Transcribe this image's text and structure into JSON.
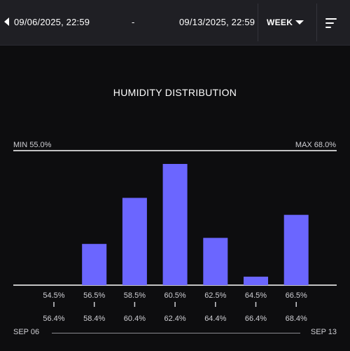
{
  "header": {
    "start_date": "09/06/2025, 22:59",
    "separator": "-",
    "end_date": "09/13/2025, 22:59",
    "period_label": "WEEK",
    "menu_icon": "sort-lines-icon",
    "back_icon": "caret-left-icon",
    "dropdown_icon": "caret-down-icon"
  },
  "colors": {
    "background": "#0d0d0f",
    "header_background": "#1f1f24",
    "bar": "#6b66ff",
    "axis": "#ffffff",
    "text": "#ffffff",
    "muted_text": "#cfcfd4"
  },
  "footer": {
    "start": "SEP 06",
    "end": "SEP 13"
  },
  "chart_data": {
    "type": "bar",
    "title": "HUMIDITY DISTRIBUTION",
    "min_label": "MIN 55.0%",
    "max_label": "MAX 68.0%",
    "categories": [
      {
        "low": "54.5%",
        "high": "56.4%"
      },
      {
        "low": "56.5%",
        "high": "58.4%"
      },
      {
        "low": "58.5%",
        "high": "60.4%"
      },
      {
        "low": "60.5%",
        "high": "62.4%"
      },
      {
        "low": "62.5%",
        "high": "64.4%"
      },
      {
        "low": "64.5%",
        "high": "66.4%"
      },
      {
        "low": "66.5%",
        "high": "68.4%"
      }
    ],
    "values": [
      0,
      0.34,
      0.72,
      1.0,
      0.39,
      0.07,
      0.58
    ],
    "ylim": [
      0,
      1
    ]
  }
}
